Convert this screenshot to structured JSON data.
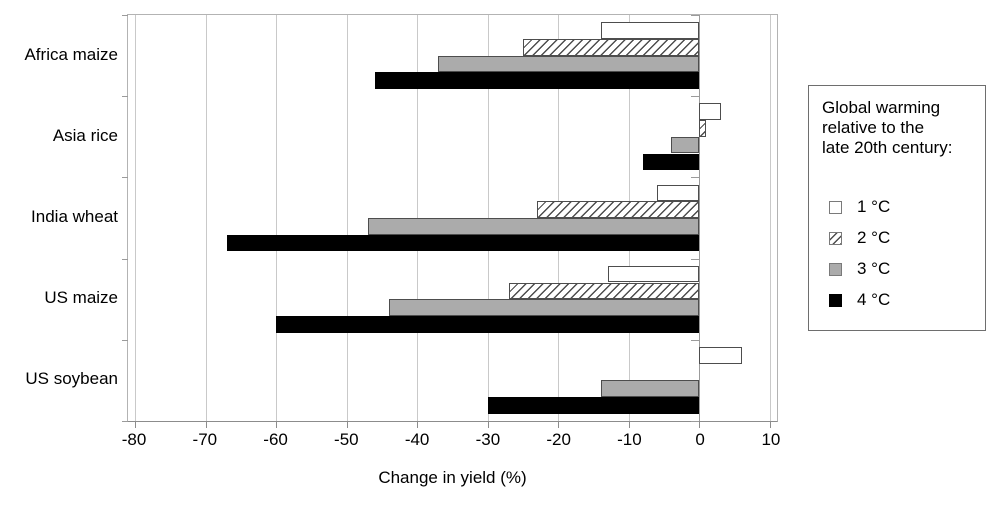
{
  "chart_data": {
    "type": "bar",
    "orientation": "horizontal",
    "xlabel": "Change in yield (%)",
    "xlim": [
      -80,
      10
    ],
    "xticks": [
      -80,
      -70,
      -60,
      -50,
      -40,
      -30,
      -20,
      -10,
      0,
      10
    ],
    "grid": true,
    "legend_position": "right",
    "categories": [
      "Africa maize",
      "Asia rice",
      "India wheat",
      "US maize",
      "US soybean"
    ],
    "series": [
      {
        "name": "1 °C",
        "style": "white",
        "values": [
          -14,
          3,
          -6,
          -13,
          6
        ]
      },
      {
        "name": "2 °C",
        "style": "hatched",
        "values": [
          -25,
          1,
          -23,
          -27,
          null
        ]
      },
      {
        "name": "3 °C",
        "style": "gray",
        "values": [
          -37,
          -4,
          -47,
          -44,
          -14
        ]
      },
      {
        "name": "4 °C",
        "style": "black",
        "values": [
          -46,
          -8,
          -67,
          -60,
          -30
        ]
      }
    ]
  },
  "legend": {
    "title_lines": [
      "Global warming",
      "relative to the",
      "late 20th century:"
    ],
    "items": [
      {
        "label": "1 °C",
        "style": "white"
      },
      {
        "label": "2 °C",
        "style": "hatched"
      },
      {
        "label": "3 °C",
        "style": "gray"
      },
      {
        "label": "4 °C",
        "style": "black"
      }
    ]
  },
  "colors": {
    "bar_gray": "#ababab",
    "bar_black": "#000000",
    "bar_border": "#4d4d4d",
    "gridline": "#c9c9c9",
    "axis": "#8c8c8c",
    "text": "#000000"
  }
}
